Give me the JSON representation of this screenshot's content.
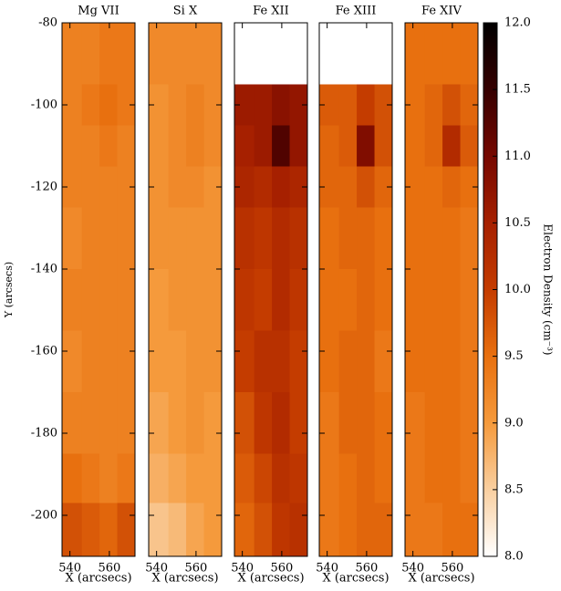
{
  "chart_data": [
    {
      "type": "heatmap",
      "title": "Mg VII",
      "xlabel": "X (arcsecs)",
      "ylabel": "Y (arcsecs)",
      "x_bins": [
        536,
        546,
        555,
        564,
        573
      ],
      "y_bins": [
        -80,
        -95,
        -105,
        -115,
        -125,
        -140,
        -155,
        -170,
        -185,
        -197,
        -210
      ],
      "xlim": [
        536,
        573
      ],
      "xticks": [
        540,
        560
      ],
      "ylim": [
        -80,
        -210
      ],
      "yticks": [
        -80,
        -100,
        -120,
        -140,
        -160,
        -180,
        -200
      ],
      "values": [
        [
          9.3,
          9.3,
          9.4,
          9.4
        ],
        [
          9.3,
          9.4,
          9.5,
          9.4
        ],
        [
          9.3,
          9.3,
          9.4,
          9.3
        ],
        [
          9.3,
          9.3,
          9.3,
          9.3
        ],
        [
          9.2,
          9.3,
          9.3,
          9.3
        ],
        [
          9.3,
          9.3,
          9.3,
          9.3
        ],
        [
          9.2,
          9.3,
          9.3,
          9.3
        ],
        [
          9.3,
          9.3,
          9.3,
          9.3
        ],
        [
          9.5,
          9.4,
          9.3,
          9.4
        ],
        [
          9.8,
          9.7,
          9.6,
          9.8
        ]
      ]
    },
    {
      "type": "heatmap",
      "title": "Si X",
      "xlabel": "X (arcsecs)",
      "x_bins": [
        536,
        546,
        555,
        564,
        573
      ],
      "y_bins": [
        -80,
        -95,
        -105,
        -115,
        -125,
        -140,
        -155,
        -170,
        -185,
        -197,
        -210
      ],
      "xlim": [
        536,
        573
      ],
      "xticks": [
        540,
        560
      ],
      "ylim": [
        -80,
        -210
      ],
      "yticks": [
        -80,
        -100,
        -120,
        -140,
        -160,
        -180,
        -200
      ],
      "values": [
        [
          9.2,
          9.2,
          9.2,
          9.2
        ],
        [
          9.1,
          9.2,
          9.3,
          9.2
        ],
        [
          9.1,
          9.2,
          9.3,
          9.2
        ],
        [
          9.1,
          9.2,
          9.2,
          9.1
        ],
        [
          9.1,
          9.1,
          9.1,
          9.1
        ],
        [
          9.0,
          9.1,
          9.1,
          9.1
        ],
        [
          9.0,
          9.0,
          9.1,
          9.1
        ],
        [
          8.9,
          9.0,
          9.1,
          9.0
        ],
        [
          8.8,
          8.9,
          9.0,
          9.0
        ],
        [
          8.6,
          8.7,
          8.9,
          9.0
        ]
      ]
    },
    {
      "type": "heatmap",
      "title": "Fe XII",
      "xlabel": "X (arcsecs)",
      "x_bins": [
        536,
        546,
        555,
        564,
        573
      ],
      "y_bins": [
        -80,
        -95,
        -105,
        -115,
        -125,
        -140,
        -155,
        -170,
        -185,
        -197,
        -210
      ],
      "xlim": [
        536,
        573
      ],
      "xticks": [
        540,
        560
      ],
      "ylim": [
        -80,
        -210
      ],
      "yticks": [
        -80,
        -100,
        -120,
        -140,
        -160,
        -180,
        -200
      ],
      "values": [
        [
          null,
          null,
          null,
          null
        ],
        [
          10.6,
          10.6,
          10.8,
          10.7
        ],
        [
          10.5,
          10.6,
          11.3,
          10.7
        ],
        [
          10.4,
          10.3,
          10.5,
          10.4
        ],
        [
          10.2,
          10.1,
          10.3,
          10.2
        ],
        [
          10.1,
          10.0,
          10.3,
          10.1
        ],
        [
          10.0,
          10.2,
          10.2,
          10.0
        ],
        [
          9.8,
          10.1,
          10.3,
          10.0
        ],
        [
          9.7,
          9.9,
          10.2,
          10.1
        ],
        [
          9.6,
          9.8,
          10.1,
          10.2
        ]
      ]
    },
    {
      "type": "heatmap",
      "title": "Fe XIII",
      "xlabel": "X (arcsecs)",
      "x_bins": [
        536,
        546,
        555,
        564,
        573
      ],
      "y_bins": [
        -80,
        -95,
        -105,
        -115,
        -125,
        -140,
        -155,
        -170,
        -185,
        -197,
        -210
      ],
      "xlim": [
        536,
        573
      ],
      "xticks": [
        540,
        560
      ],
      "ylim": [
        -80,
        -210
      ],
      "yticks": [
        -80,
        -100,
        -120,
        -140,
        -160,
        -180,
        -200
      ],
      "values": [
        [
          null,
          null,
          null,
          null
        ],
        [
          9.7,
          9.7,
          10.0,
          9.8
        ],
        [
          9.6,
          9.7,
          10.9,
          9.8
        ],
        [
          9.6,
          9.6,
          9.8,
          9.6
        ],
        [
          9.5,
          9.6,
          9.6,
          9.5
        ],
        [
          9.5,
          9.5,
          9.6,
          9.5
        ],
        [
          9.5,
          9.6,
          9.6,
          9.4
        ],
        [
          9.4,
          9.6,
          9.6,
          9.5
        ],
        [
          9.4,
          9.5,
          9.6,
          9.5
        ],
        [
          9.4,
          9.5,
          9.6,
          9.6
        ]
      ]
    },
    {
      "type": "heatmap",
      "title": "Fe XIV",
      "xlabel": "X (arcsecs)",
      "x_bins": [
        536,
        546,
        555,
        564,
        573
      ],
      "y_bins": [
        -80,
        -95,
        -105,
        -115,
        -125,
        -140,
        -155,
        -170,
        -185,
        -197,
        -210
      ],
      "xlim": [
        536,
        573
      ],
      "xticks": [
        540,
        560
      ],
      "ylim": [
        -80,
        -210
      ],
      "yticks": [
        -80,
        -100,
        -120,
        -140,
        -160,
        -180,
        -200
      ],
      "values": [
        [
          9.5,
          9.5,
          9.5,
          9.5
        ],
        [
          9.5,
          9.6,
          9.8,
          9.6
        ],
        [
          9.5,
          9.6,
          10.3,
          9.7
        ],
        [
          9.5,
          9.5,
          9.6,
          9.5
        ],
        [
          9.5,
          9.5,
          9.5,
          9.4
        ],
        [
          9.5,
          9.5,
          9.5,
          9.4
        ],
        [
          9.5,
          9.5,
          9.5,
          9.4
        ],
        [
          9.4,
          9.5,
          9.5,
          9.4
        ],
        [
          9.4,
          9.5,
          9.5,
          9.4
        ],
        [
          9.4,
          9.4,
          9.5,
          9.5
        ]
      ]
    },
    {
      "type": "colorbar",
      "label": "Electron Density (cm⁻³)",
      "zlim": [
        8,
        12
      ],
      "ticks": [
        {
          "value": 8,
          "label": "8.0"
        },
        {
          "value": 8.5,
          "label": "8.5"
        },
        {
          "value": 9,
          "label": "9.0"
        },
        {
          "value": 9.5,
          "label": "9.5"
        },
        {
          "value": 10,
          "label": "10.0"
        },
        {
          "value": 10.5,
          "label": "10.5"
        },
        {
          "value": 11,
          "label": "11.0"
        },
        {
          "value": 11.5,
          "label": "11.5"
        },
        {
          "value": 12,
          "label": "12.0"
        }
      ],
      "colormap": [
        "#ffffff",
        "#f9cfa0",
        "#f59a3c",
        "#e8700f",
        "#c43c00",
        "#a62000",
        "#760800",
        "#360000",
        "#000000"
      ]
    }
  ]
}
